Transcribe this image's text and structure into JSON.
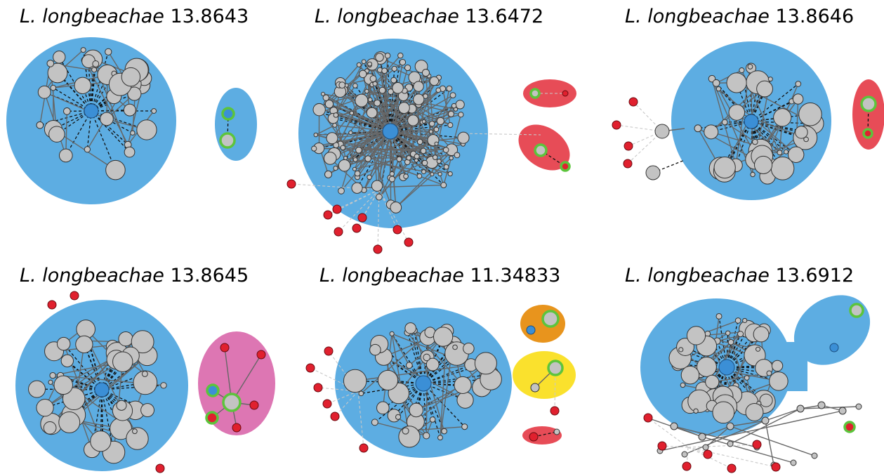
{
  "figure": {
    "panels": [
      {
        "genus": "L. longbeachae",
        "strain": "13.8643",
        "clusters": [
          {
            "color": "#5DADE2",
            "role": "main"
          },
          {
            "color": "#5DADE2",
            "role": "secondary"
          }
        ]
      },
      {
        "genus": "L. longbeachae",
        "strain": "13.6472",
        "clusters": [
          {
            "color": "#5DADE2",
            "role": "main"
          },
          {
            "color": "#E74C57",
            "role": "secondary"
          },
          {
            "color": "#E74C57",
            "role": "secondary"
          }
        ]
      },
      {
        "genus": "L. longbeachae",
        "strain": "13.8646",
        "clusters": [
          {
            "color": "#5DADE2",
            "role": "main"
          },
          {
            "color": "#E74C57",
            "role": "secondary"
          }
        ]
      },
      {
        "genus": "L. longbeachae",
        "strain": "13.8645",
        "clusters": [
          {
            "color": "#5DADE2",
            "role": "main"
          },
          {
            "color": "#DD76B3",
            "role": "secondary"
          }
        ]
      },
      {
        "genus": "L. longbeachae",
        "strain": "11.34833",
        "clusters": [
          {
            "color": "#5DADE2",
            "role": "main"
          },
          {
            "color": "#E8941D",
            "role": "secondary"
          },
          {
            "color": "#FAE12D",
            "role": "secondary"
          },
          {
            "color": "#E74C57",
            "role": "secondary"
          }
        ]
      },
      {
        "genus": "L. longbeachae",
        "strain": "13.6912",
        "clusters": [
          {
            "color": "#5DADE2",
            "role": "main"
          },
          {
            "color": "#5DADE2",
            "role": "secondary"
          }
        ]
      }
    ],
    "node_colors": {
      "gray": "#C3C3C3",
      "hub": "#3B8FD6",
      "red": "#E0202E",
      "ring": "#5CC43C"
    }
  }
}
